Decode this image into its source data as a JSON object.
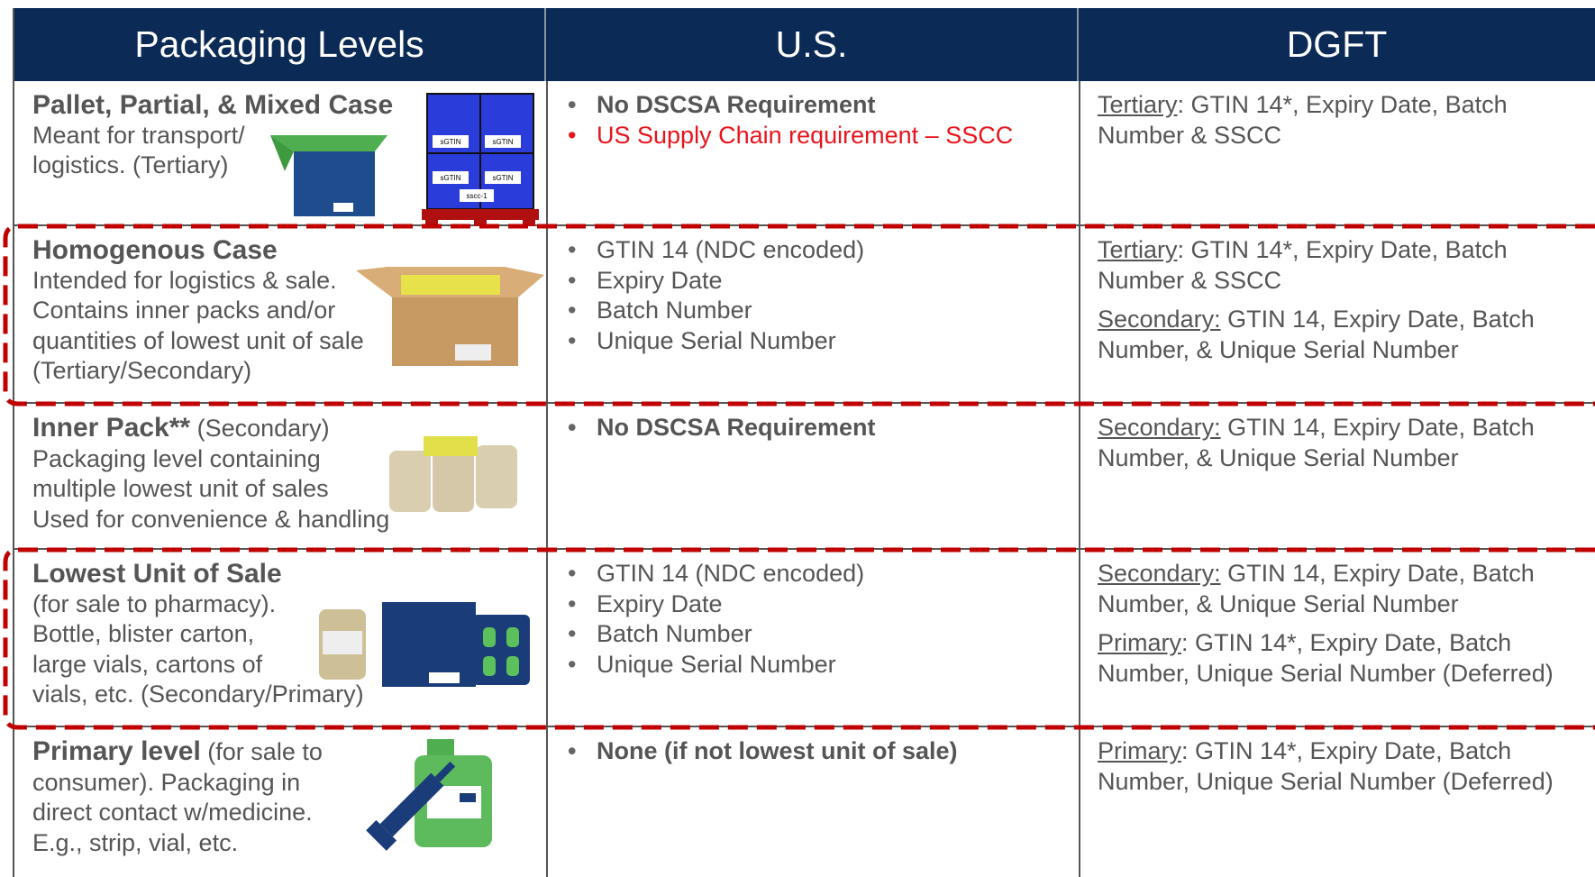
{
  "header": [
    "Packaging Levels",
    "U.S.",
    "DGFT"
  ],
  "rows": [
    {
      "title": "Pallet, Partial, & Mixed Case",
      "text": [
        "Meant for transport/",
        "logistics. (Tertiary)"
      ],
      "us": [
        {
          "text": "No DSCSA Requirement",
          "bold": true
        },
        {
          "text": "US Supply Chain requirement – SSCC",
          "red": true
        }
      ],
      "dgft": [
        {
          "label": "Tertiary",
          "text": ": GTIN 14*, Expiry Date, Batch Number & SSCC"
        }
      ]
    },
    {
      "title": "Homogenous Case",
      "text": [
        "Intended for logistics & sale.",
        "Contains inner packs and/or",
        "quantities of lowest unit of sale",
        "(Tertiary/Secondary)"
      ],
      "us": [
        {
          "text": "GTIN 14 (NDC encoded)"
        },
        {
          "text": "Expiry Date"
        },
        {
          "text": "Batch Number"
        },
        {
          "text": "Unique Serial Number"
        }
      ],
      "dgft": [
        {
          "label": "Tertiary",
          "text": ": GTIN 14*, Expiry Date, Batch Number & SSCC"
        },
        {
          "label": "Secondary:",
          "text": " GTIN 14, Expiry Date, Batch Number, & Unique Serial Number"
        }
      ]
    },
    {
      "title": "Inner Pack**",
      "suffix": " (Secondary)",
      "text": [
        "Packaging level containing",
        "multiple lowest unit of sales",
        "Used for convenience & handling"
      ],
      "us": [
        {
          "text": "No DSCSA Requirement",
          "bold": true
        }
      ],
      "dgft": [
        {
          "label": "Secondary:",
          "text": " GTIN 14, Expiry Date, Batch Number, & Unique Serial Number"
        }
      ]
    },
    {
      "title": "Lowest Unit of Sale",
      "text": [
        "(for sale to pharmacy).",
        "Bottle, blister carton,",
        "large vials, cartons of",
        "vials, etc. (Secondary/Primary)"
      ],
      "us": [
        {
          "text": "GTIN 14 (NDC encoded)"
        },
        {
          "text": "Expiry Date"
        },
        {
          "text": "Batch Number"
        },
        {
          "text": "Unique Serial Number"
        }
      ],
      "dgft": [
        {
          "label": "Secondary:",
          "text": " GTIN 14, Expiry Date, Batch Number, & Unique Serial Number"
        },
        {
          "label": "Primary",
          "text": ": GTIN 14*, Expiry Date, Batch Number, Unique Serial Number (Deferred)"
        }
      ]
    },
    {
      "title": "Primary level",
      "suffix": " (for sale to",
      "text": [
        "consumer). Packaging in",
        "direct contact w/medicine.",
        "E.g., strip, vial, etc."
      ],
      "us": [
        {
          "text": "None (if not lowest unit of sale)",
          "bold": true
        }
      ],
      "dgft": [
        {
          "label": "Primary",
          "text": ": GTIN 14*, Expiry Date, Batch Number, Unique Serial Number (Deferred)"
        }
      ]
    }
  ],
  "pallet_labels": [
    "sGTIN",
    "sscc-1"
  ]
}
